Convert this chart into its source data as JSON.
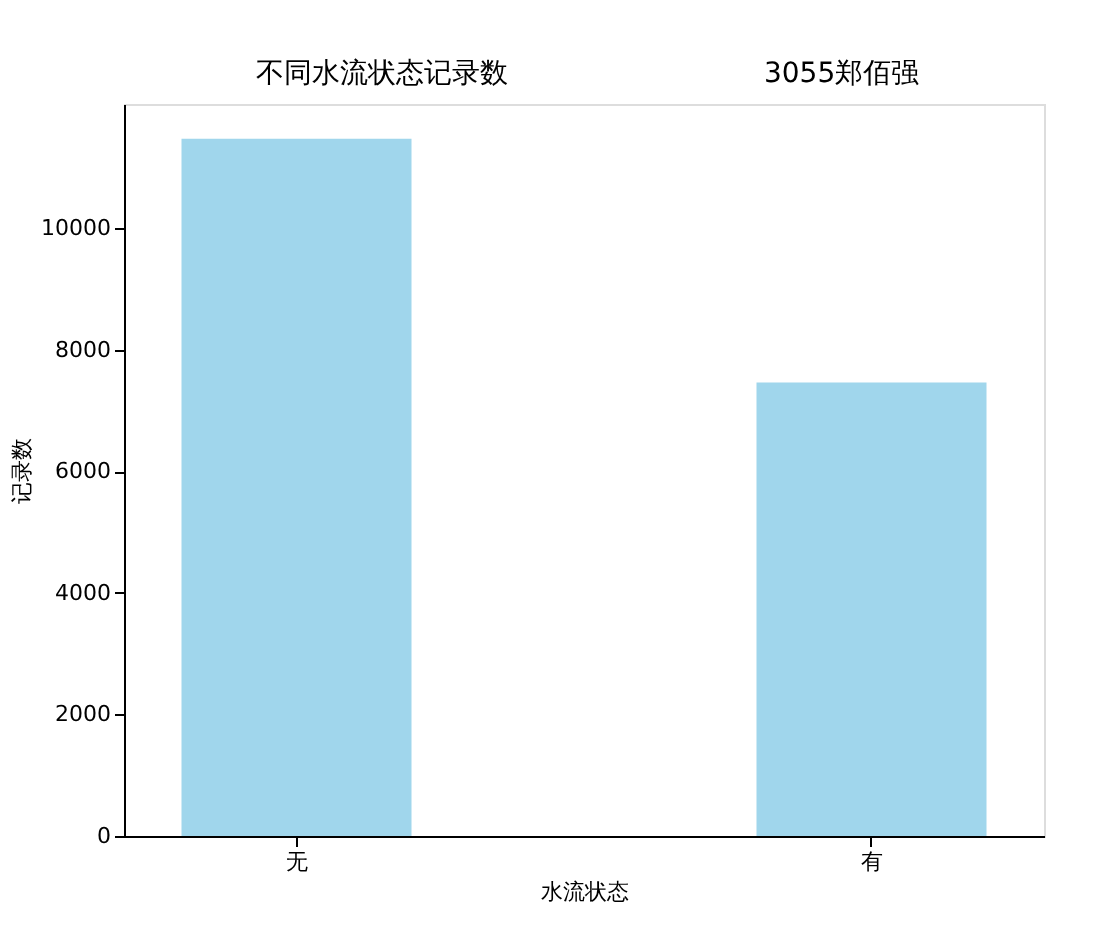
{
  "chart_data": {
    "type": "bar",
    "title": "不同水流状态记录数",
    "annotations": [
      "3055郑佰强"
    ],
    "xlabel": "水流状态",
    "ylabel": "记录数",
    "categories": [
      "无",
      "有"
    ],
    "values": [
      11470,
      7460
    ],
    "color": "#a0d6ec",
    "ylim": [
      0,
      12040
    ],
    "yticks": [
      0,
      2000,
      4000,
      6000,
      8000,
      10000
    ],
    "grid": false
  }
}
